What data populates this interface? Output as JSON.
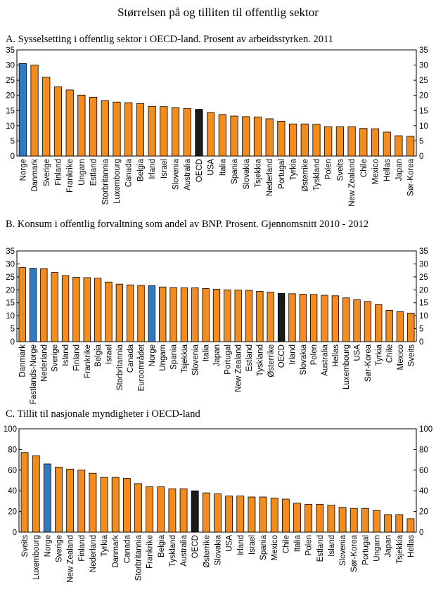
{
  "figure_title": "Størrelsen på og tilliten til offentlig sektor",
  "colors": {
    "default": "#F28C1F",
    "highlight": "#2E7BC4",
    "oecd": "#1a1a1a"
  },
  "chart_data": [
    {
      "type": "bar",
      "title": "A.  Sysselsetting i offentlig sektor i OECD-land. Prosent av arbeidsstyrken. 2011",
      "ylim": [
        0,
        35
      ],
      "yticks": [
        0,
        5,
        10,
        15,
        20,
        25,
        30,
        35
      ],
      "categories": [
        "Norge",
        "Danmark",
        "Sverige",
        "Finland",
        "Frankrike",
        "Ungarn",
        "Estland",
        "Storbritannia",
        "Luxembourg",
        "Canada",
        "Belgia",
        "Irland",
        "Israel",
        "Slovenia",
        "Australia",
        "OECD",
        "USA",
        "Italia",
        "Spania",
        "Slovakia",
        "Tsjekkia",
        "Nederland",
        "Portugal",
        "Tyrkia",
        "Østerrike",
        "Tyskland",
        "Polen",
        "Sveits",
        "New Zealand",
        "Chile",
        "Mexico",
        "Hellas",
        "Japan",
        "Sør-Korea"
      ],
      "values": [
        30.5,
        30,
        26,
        22.8,
        21.8,
        20.1,
        19.4,
        18.3,
        17.8,
        17.6,
        17.3,
        16.4,
        16.3,
        16.0,
        15.7,
        15.4,
        14.4,
        13.7,
        13.2,
        13.0,
        12.9,
        12.3,
        11.5,
        10.6,
        10.6,
        10.5,
        9.7,
        9.7,
        9.7,
        9.1,
        9.0,
        7.9,
        6.7,
        6.5
      ],
      "highlight": [
        "Norge"
      ],
      "oecd": [
        "OECD"
      ]
    },
    {
      "type": "bar",
      "title": "B.  Konsum i offentlig forvaltning som andel av BNP. Prosent. Gjennomsnitt 2010 - 2012",
      "ylim": [
        0,
        35
      ],
      "yticks": [
        0,
        5,
        10,
        15,
        20,
        25,
        30,
        35
      ],
      "categories": [
        "Danmark",
        "Fastlands-Norge",
        "Nederland",
        "Sverige",
        "Island",
        "Finland",
        "Frankrike",
        "Belgia",
        "Israel",
        "Storbritannia",
        "Canada",
        "Euroområdet",
        "Norge",
        "Ungarn",
        "Spania",
        "Tsjekkia",
        "Slovenia",
        "Italia",
        "Japan",
        "Portugal",
        "New Zealand",
        "Estland",
        "Tyskland",
        "Østerrike",
        "OECD",
        "Irland",
        "Slovakia",
        "Polen",
        "Australia",
        "Hellas",
        "Luxembourg",
        "USA",
        "Sør-Korea",
        "Tyrkia",
        "Chile",
        "Mexico",
        "Sveits"
      ],
      "values": [
        28.6,
        28.3,
        28.2,
        26.7,
        25.5,
        24.8,
        24.7,
        24.5,
        23.0,
        22.2,
        21.9,
        21.7,
        21.6,
        21.1,
        20.9,
        20.8,
        20.8,
        20.5,
        20.2,
        20.0,
        19.9,
        19.8,
        19.4,
        19.1,
        18.6,
        18.5,
        18.3,
        18.2,
        17.9,
        17.7,
        16.9,
        16.2,
        15.5,
        14.3,
        12.1,
        11.6,
        11.0
      ],
      "highlight": [
        "Fastlands-Norge",
        "Norge"
      ],
      "oecd": [
        "OECD"
      ]
    },
    {
      "type": "bar",
      "title": "C.  Tillit til nasjonale myndigheter i OECD-land",
      "ylim": [
        0,
        100
      ],
      "yticks": [
        0,
        20,
        40,
        60,
        80,
        100
      ],
      "categories": [
        "Sveits",
        "Luxembourg",
        "Norge",
        "Sverige",
        "New Zealand",
        "Finland",
        "Nederland",
        "Tyrkia",
        "Danmark",
        "Canada",
        "Storbritannia",
        "Frankrike",
        "Belgia",
        "Tyskland",
        "Australia",
        "OECD",
        "Østerrike",
        "Slovakia",
        "USA",
        "Irland",
        "Israel",
        "Spania",
        "Mexico",
        "Chile",
        "Italia",
        "Polen",
        "Estland",
        "Island",
        "Slovenia",
        "Sør-Korea",
        "Portugal",
        "Ungarn",
        "Japan",
        "Tsjekkia",
        "Hellas"
      ],
      "values": [
        77,
        74,
        66,
        63,
        61,
        60,
        57,
        53,
        53,
        52,
        47,
        44,
        44,
        42,
        42,
        40,
        38,
        37,
        35,
        35,
        34,
        34,
        33,
        32,
        28,
        27,
        27,
        26,
        24,
        23,
        23,
        21,
        17,
        17,
        13
      ],
      "highlight": [
        "Norge"
      ],
      "oecd": [
        "OECD"
      ]
    }
  ]
}
